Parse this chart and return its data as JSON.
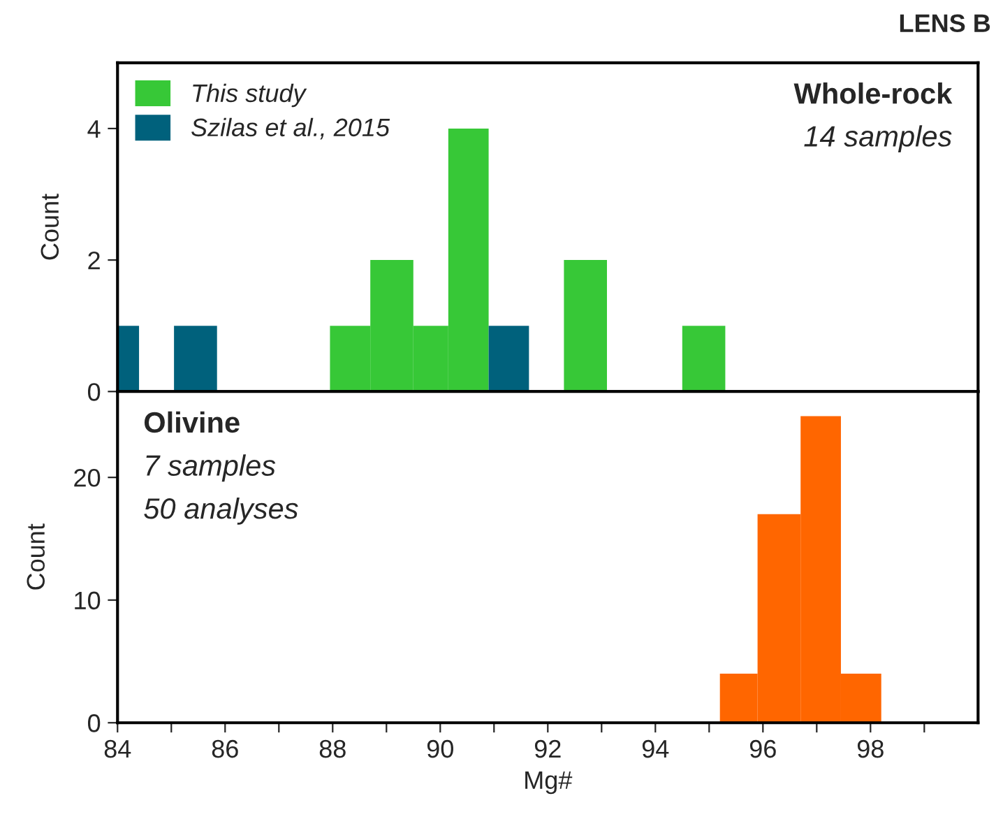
{
  "chart_data": [
    {
      "type": "histogram",
      "title": "LENS B",
      "ylabel": "Count",
      "annotations": [
        "Whole-rock",
        "14 samples"
      ],
      "bins": [
        84,
        84.4,
        85.05,
        85.85,
        87.95,
        88.7,
        89.5,
        90.15,
        90.9,
        91.65,
        92.3,
        93.1,
        94.5,
        95.3
      ],
      "series": [
        {
          "name": "This study",
          "color": "#37c837",
          "values": [
            null,
            null,
            null,
            null,
            1,
            2,
            1,
            4,
            null,
            null,
            2,
            null,
            1
          ]
        },
        {
          "name": "Szilas et al., 2015",
          "color": "#00617c",
          "values": [
            1,
            null,
            1,
            null,
            null,
            null,
            null,
            null,
            1,
            null,
            null,
            null,
            null
          ]
        }
      ],
      "xlim": [
        84,
        100
      ],
      "ylim": [
        0,
        5
      ],
      "yticks": [
        0,
        2,
        4
      ],
      "tick_labels": "y",
      "legend": "top left",
      "grid": false
    },
    {
      "type": "histogram",
      "xlabel": "Mg#",
      "ylabel": "Count",
      "annotations": [
        "Olivine",
        "7 samples",
        "50 analyses"
      ],
      "bins": [
        95.2,
        95.9,
        96.7,
        97.45,
        98.2
      ],
      "series": [
        {
          "color": "#ff6600",
          "values": [
            4,
            17,
            25,
            4
          ]
        }
      ],
      "xlim": [
        84,
        100
      ],
      "ylim": [
        0,
        27
      ],
      "yticks": [
        0,
        10,
        20
      ],
      "xticks": [
        84,
        {
          "value": 85,
          "label": null
        },
        86,
        {
          "value": 87,
          "label": null
        },
        88,
        {
          "value": 89,
          "label": null
        },
        90,
        {
          "value": 91,
          "label": null
        },
        92,
        {
          "value": 93,
          "label": null
        },
        94,
        {
          "value": 95,
          "label": null
        },
        96,
        {
          "value": 97,
          "label": null
        },
        98,
        {
          "value": 99,
          "label": null
        }
      ],
      "grid": false
    }
  ]
}
